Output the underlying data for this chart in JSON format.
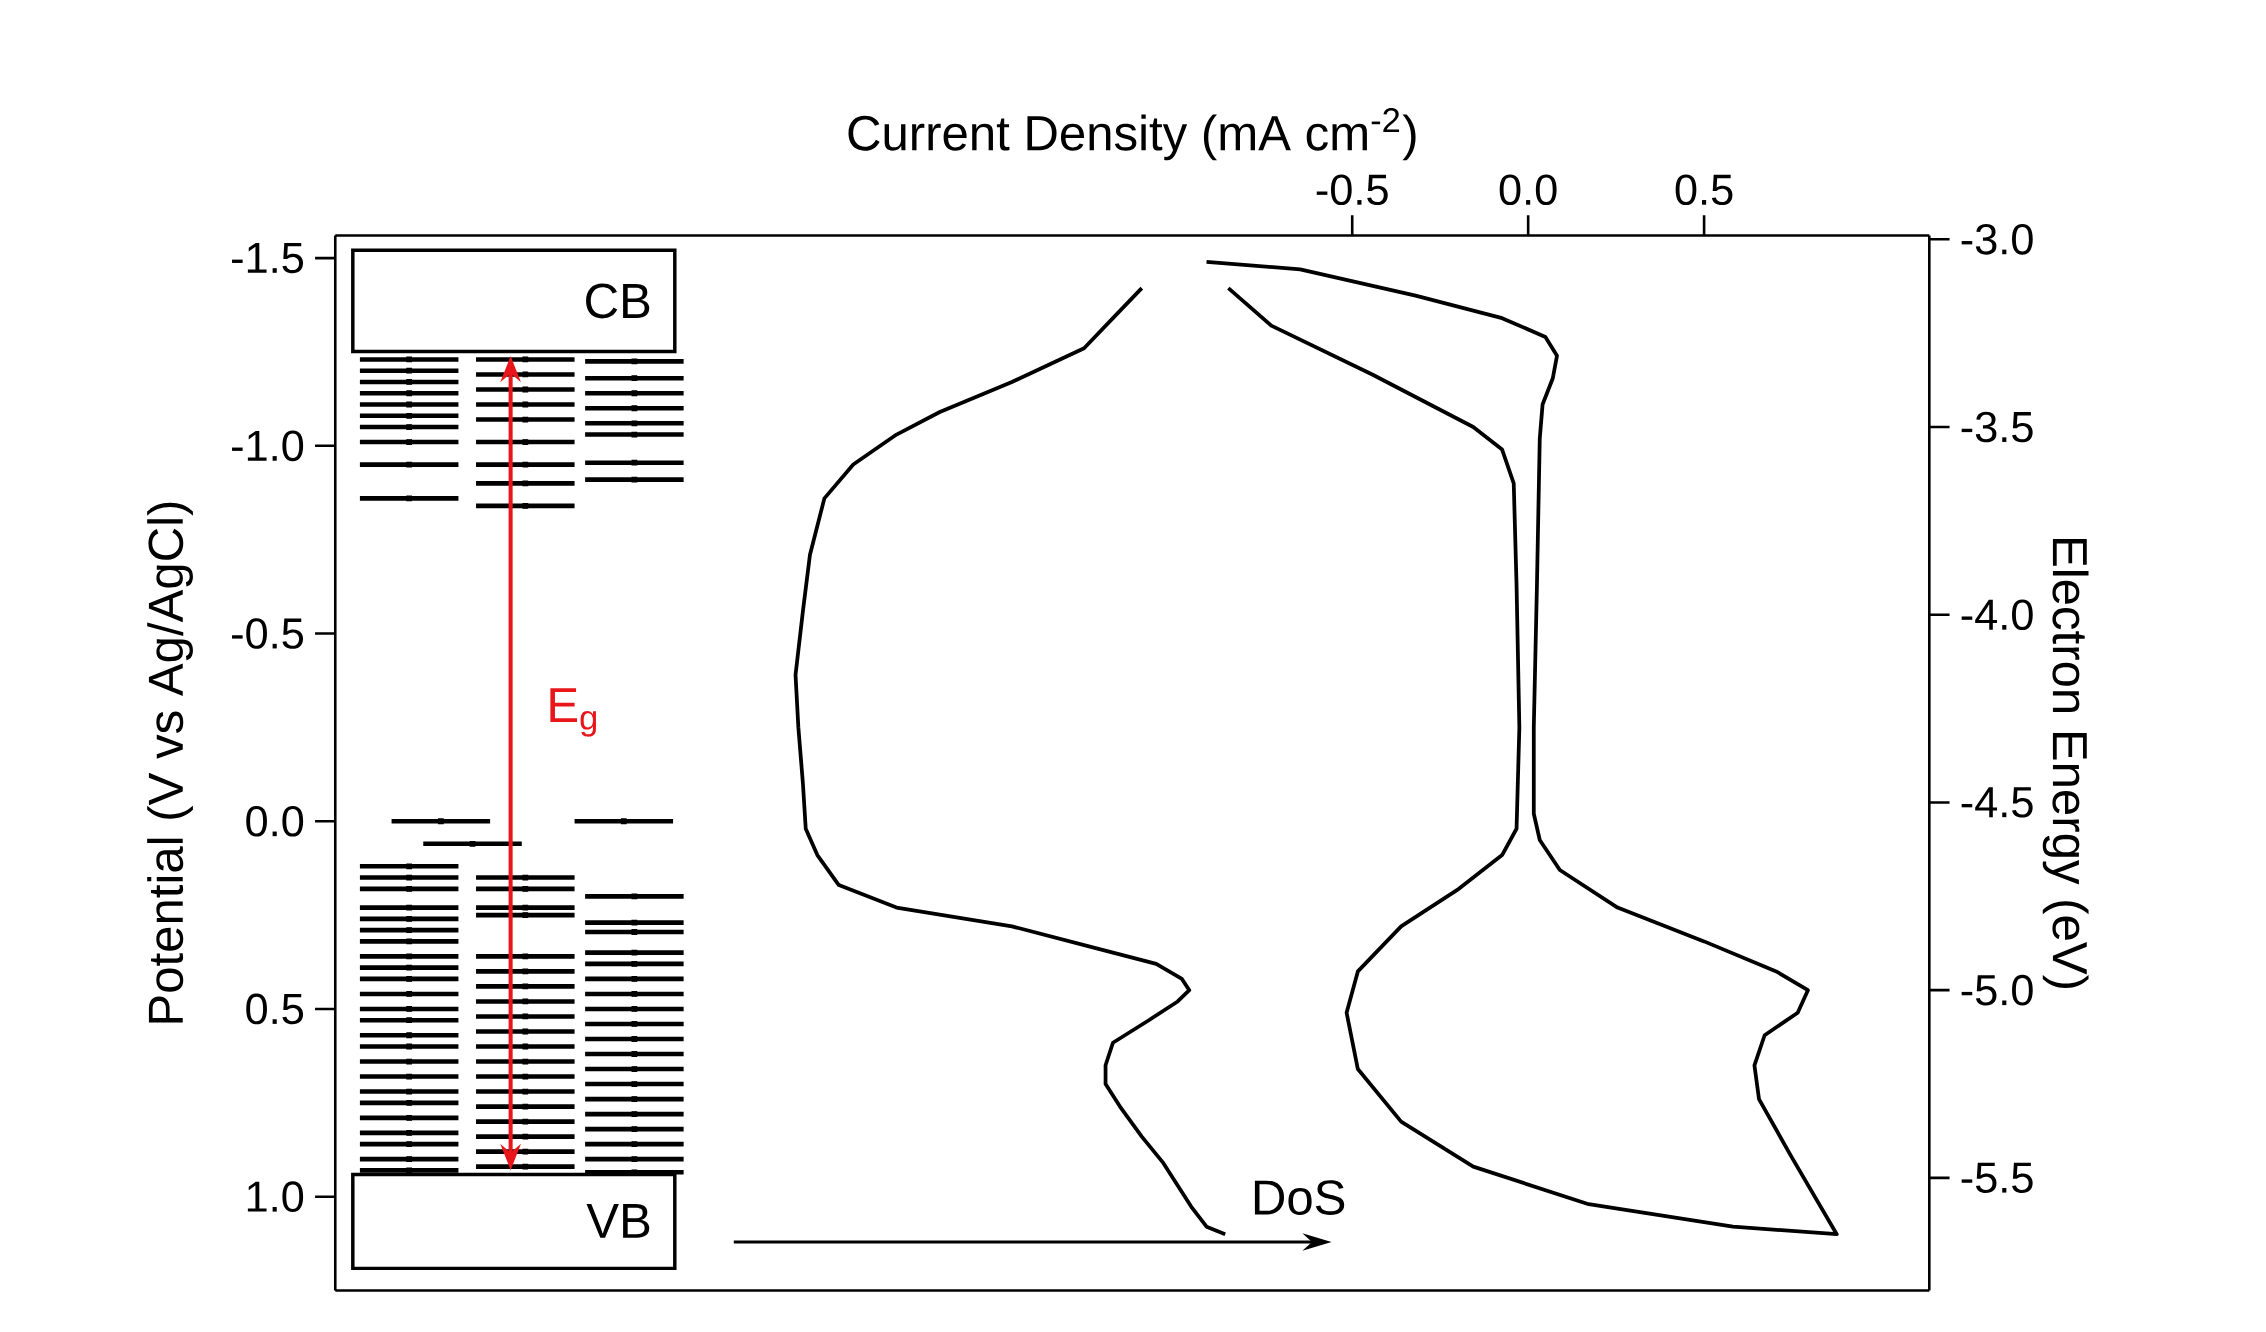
{
  "chart_data": {
    "type": "line",
    "xlabel": "Current Density (mA cm$^{-2}$)",
    "ylabel": "Potential (V vs Ag/AgCl)",
    "y2label": "Electron Energy (eV)",
    "xlim": [
      -3.39,
      1.14
    ],
    "xticks": [
      -0.5,
      {
        "value": 0,
        "label": "0.0"
      },
      0.5
    ],
    "ylim": [
      1.25,
      -1.56
    ],
    "yticks": [
      -1.5,
      {
        "value": -1,
        "label": "-1.0"
      },
      -0.5,
      {
        "value": 0,
        "label": "0.0"
      },
      0.5,
      {
        "value": 1,
        "label": "1.0"
      }
    ],
    "y2lim": [
      -5.8,
      -2.99
    ],
    "y2ticks": [
      {
        "value": -3,
        "label": "-3.0"
      },
      -3.5,
      {
        "value": -4,
        "label": "-4.0"
      },
      -4.5,
      {
        "value": -5,
        "label": "-5.0"
      },
      -5.5
    ],
    "marker": "none",
    "line_style": "solid",
    "annotations": [
      "CB",
      "VB",
      "E$_{g}$",
      "DoS"
    ],
    "series": [
      {
        "color": "#000000",
        "x": [
          -1.098,
          -1.18,
          -1.262,
          -1.467,
          -1.672,
          -1.795,
          -1.918,
          -2.0,
          -2.041,
          -2.061,
          -2.082,
          -2.074,
          -2.061,
          -2.053,
          -2.02,
          -1.959,
          -1.795,
          -1.467,
          -1.221,
          -1.057,
          -0.984,
          -0.963,
          -0.996,
          -1.078,
          -1.18,
          -1.201,
          -1.201,
          -1.16,
          -1.098,
          -1.037,
          -0.996,
          -0.955,
          -0.914,
          -0.861
        ],
        "values": [
          -1.42,
          -1.34,
          -1.26,
          -1.17,
          -1.09,
          -1.03,
          -0.95,
          -0.86,
          -0.71,
          -0.56,
          -0.39,
          -0.25,
          -0.1,
          0.02,
          0.09,
          0.17,
          0.23,
          0.28,
          0.34,
          0.38,
          0.42,
          0.45,
          0.48,
          0.53,
          0.59,
          0.65,
          0.7,
          0.76,
          0.84,
          0.91,
          0.97,
          1.03,
          1.08,
          1.1
        ]
      },
      {
        "color": "#000000",
        "x": [
          -0.914,
          -0.648,
          -0.32,
          -0.074,
          0.049,
          0.082,
          0.07,
          0.041,
          0.033,
          0.025,
          0.016,
          0.016,
          0.033,
          0.09,
          0.254,
          0.5,
          0.705,
          0.795,
          0.766,
          0.672,
          0.643,
          0.656,
          0.746,
          0.877,
          0.582,
          0.172,
          -0.156,
          -0.361,
          -0.484,
          -0.516,
          -0.484,
          -0.361,
          -0.197,
          -0.074,
          -0.033,
          -0.025,
          -0.033,
          -0.041,
          -0.074,
          -0.156,
          -0.443,
          -0.73,
          -0.852
        ],
        "values": [
          -1.49,
          -1.47,
          -1.4,
          -1.34,
          -1.29,
          -1.24,
          -1.18,
          -1.11,
          -1.02,
          -0.63,
          -0.25,
          -0.02,
          0.05,
          0.13,
          0.23,
          0.32,
          0.4,
          0.45,
          0.51,
          0.57,
          0.65,
          0.74,
          0.89,
          1.1,
          1.08,
          1.02,
          0.92,
          0.8,
          0.66,
          0.51,
          0.4,
          0.28,
          0.18,
          0.09,
          0.02,
          -0.25,
          -0.63,
          -0.9,
          -0.99,
          -1.05,
          -1.19,
          -1.32,
          -1.42
        ]
      },
      {
        "type": "scatter",
        "marker": "square",
        "color": "#000000",
        "x": [
          -3.18,
          -3.18,
          -3.18,
          -3.18,
          -3.18,
          -3.18,
          -3.18,
          -3.18,
          -3.18,
          -3.18,
          -3.18,
          -3.18,
          -3.18,
          -3.18,
          -3.18,
          -3.18,
          -3.18,
          -3.18,
          -3.18,
          -3.18,
          -3.18,
          -3.18,
          -3.18,
          -3.18,
          -3.18,
          -3.18,
          -3.18,
          -3.18,
          -3.18,
          -3.18,
          -3.18,
          -3.18,
          -3.18,
          -3.18
        ],
        "values": [
          -1.23,
          -1.2,
          -1.17,
          -1.14,
          -1.11,
          -1.08,
          -1.05,
          -1.01,
          -0.95,
          -0.86,
          0.12,
          0.15,
          0.18,
          0.23,
          0.26,
          0.29,
          0.32,
          0.36,
          0.39,
          0.42,
          0.46,
          0.5,
          0.53,
          0.57,
          0.6,
          0.64,
          0.68,
          0.72,
          0.75,
          0.79,
          0.83,
          0.86,
          0.9,
          0.93
        ],
        "xerrors": [
          0.14,
          0.14,
          0.14,
          0.14,
          0.14,
          0.14,
          0.14,
          0.14,
          0.14,
          0.14,
          0.14,
          0.14,
          0.14,
          0.14,
          0.14,
          0.14,
          0.14,
          0.14,
          0.14,
          0.14,
          0.14,
          0.14,
          0.14,
          0.14,
          0.14,
          0.14,
          0.14,
          0.14,
          0.14,
          0.14,
          0.14,
          0.14,
          0.14,
          0.14
        ]
      },
      {
        "type": "scatter",
        "marker": "square",
        "color": "#000000",
        "x": [
          -2.85,
          -2.85,
          -2.85,
          -2.85,
          -2.85,
          -2.85,
          -2.85,
          -2.85,
          -2.85,
          -2.85,
          -2.85,
          -2.85,
          -2.85,
          -2.85,
          -2.85,
          -2.85,
          -2.85,
          -2.85,
          -2.85,
          -2.85,
          -2.85,
          -2.85,
          -2.85,
          -2.85,
          -2.85,
          -2.85,
          -2.85,
          -2.85
        ],
        "values": [
          -1.23,
          -1.19,
          -1.15,
          -1.11,
          -1.07,
          -1.01,
          -0.95,
          -0.9,
          -0.84,
          0.15,
          0.18,
          0.23,
          0.25,
          0.36,
          0.4,
          0.44,
          0.48,
          0.52,
          0.56,
          0.6,
          0.64,
          0.68,
          0.72,
          0.76,
          0.8,
          0.84,
          0.88,
          0.92
        ],
        "xerrors": [
          0.14,
          0.14,
          0.14,
          0.14,
          0.14,
          0.14,
          0.14,
          0.14,
          0.14,
          0.14,
          0.14,
          0.14,
          0.14,
          0.14,
          0.14,
          0.14,
          0.14,
          0.14,
          0.14,
          0.14,
          0.14,
          0.14,
          0.14,
          0.14,
          0.14,
          0.14,
          0.14,
          0.14
        ]
      },
      {
        "type": "scatter",
        "marker": "square",
        "color": "#000000",
        "x": [
          -2.54,
          -2.54,
          -2.54,
          -2.54,
          -2.54,
          -2.54,
          -2.54,
          -2.54,
          -2.54,
          -2.54,
          -2.54,
          -2.54,
          -2.54,
          -2.54,
          -2.54,
          -2.54,
          -2.54,
          -2.54,
          -2.54,
          -2.54,
          -2.54,
          -2.54,
          -2.54,
          -2.54,
          -2.54,
          -2.54,
          -2.54
        ],
        "values": [
          -1.225,
          -1.18,
          -1.14,
          -1.1,
          -1.06,
          -1.03,
          -0.955,
          -0.91,
          0.2,
          0.27,
          0.295,
          0.35,
          0.38,
          0.42,
          0.46,
          0.5,
          0.54,
          0.58,
          0.62,
          0.66,
          0.7,
          0.74,
          0.78,
          0.82,
          0.86,
          0.9,
          0.935
        ],
        "xerrors": [
          0.14,
          0.14,
          0.14,
          0.14,
          0.14,
          0.14,
          0.14,
          0.14,
          0.14,
          0.14,
          0.14,
          0.14,
          0.14,
          0.14,
          0.14,
          0.14,
          0.14,
          0.14,
          0.14,
          0.14,
          0.14,
          0.14,
          0.14,
          0.14,
          0.14,
          0.14,
          0.14
        ]
      },
      {
        "type": "scatter",
        "marker": "square",
        "color": "#000000",
        "x": [
          -3.09,
          -2.57,
          -3.0
        ],
        "values": [
          0.0,
          0.0,
          0.06
        ],
        "xerrors": [
          0.14,
          0.14,
          0.14
        ]
      }
    ]
  }
}
